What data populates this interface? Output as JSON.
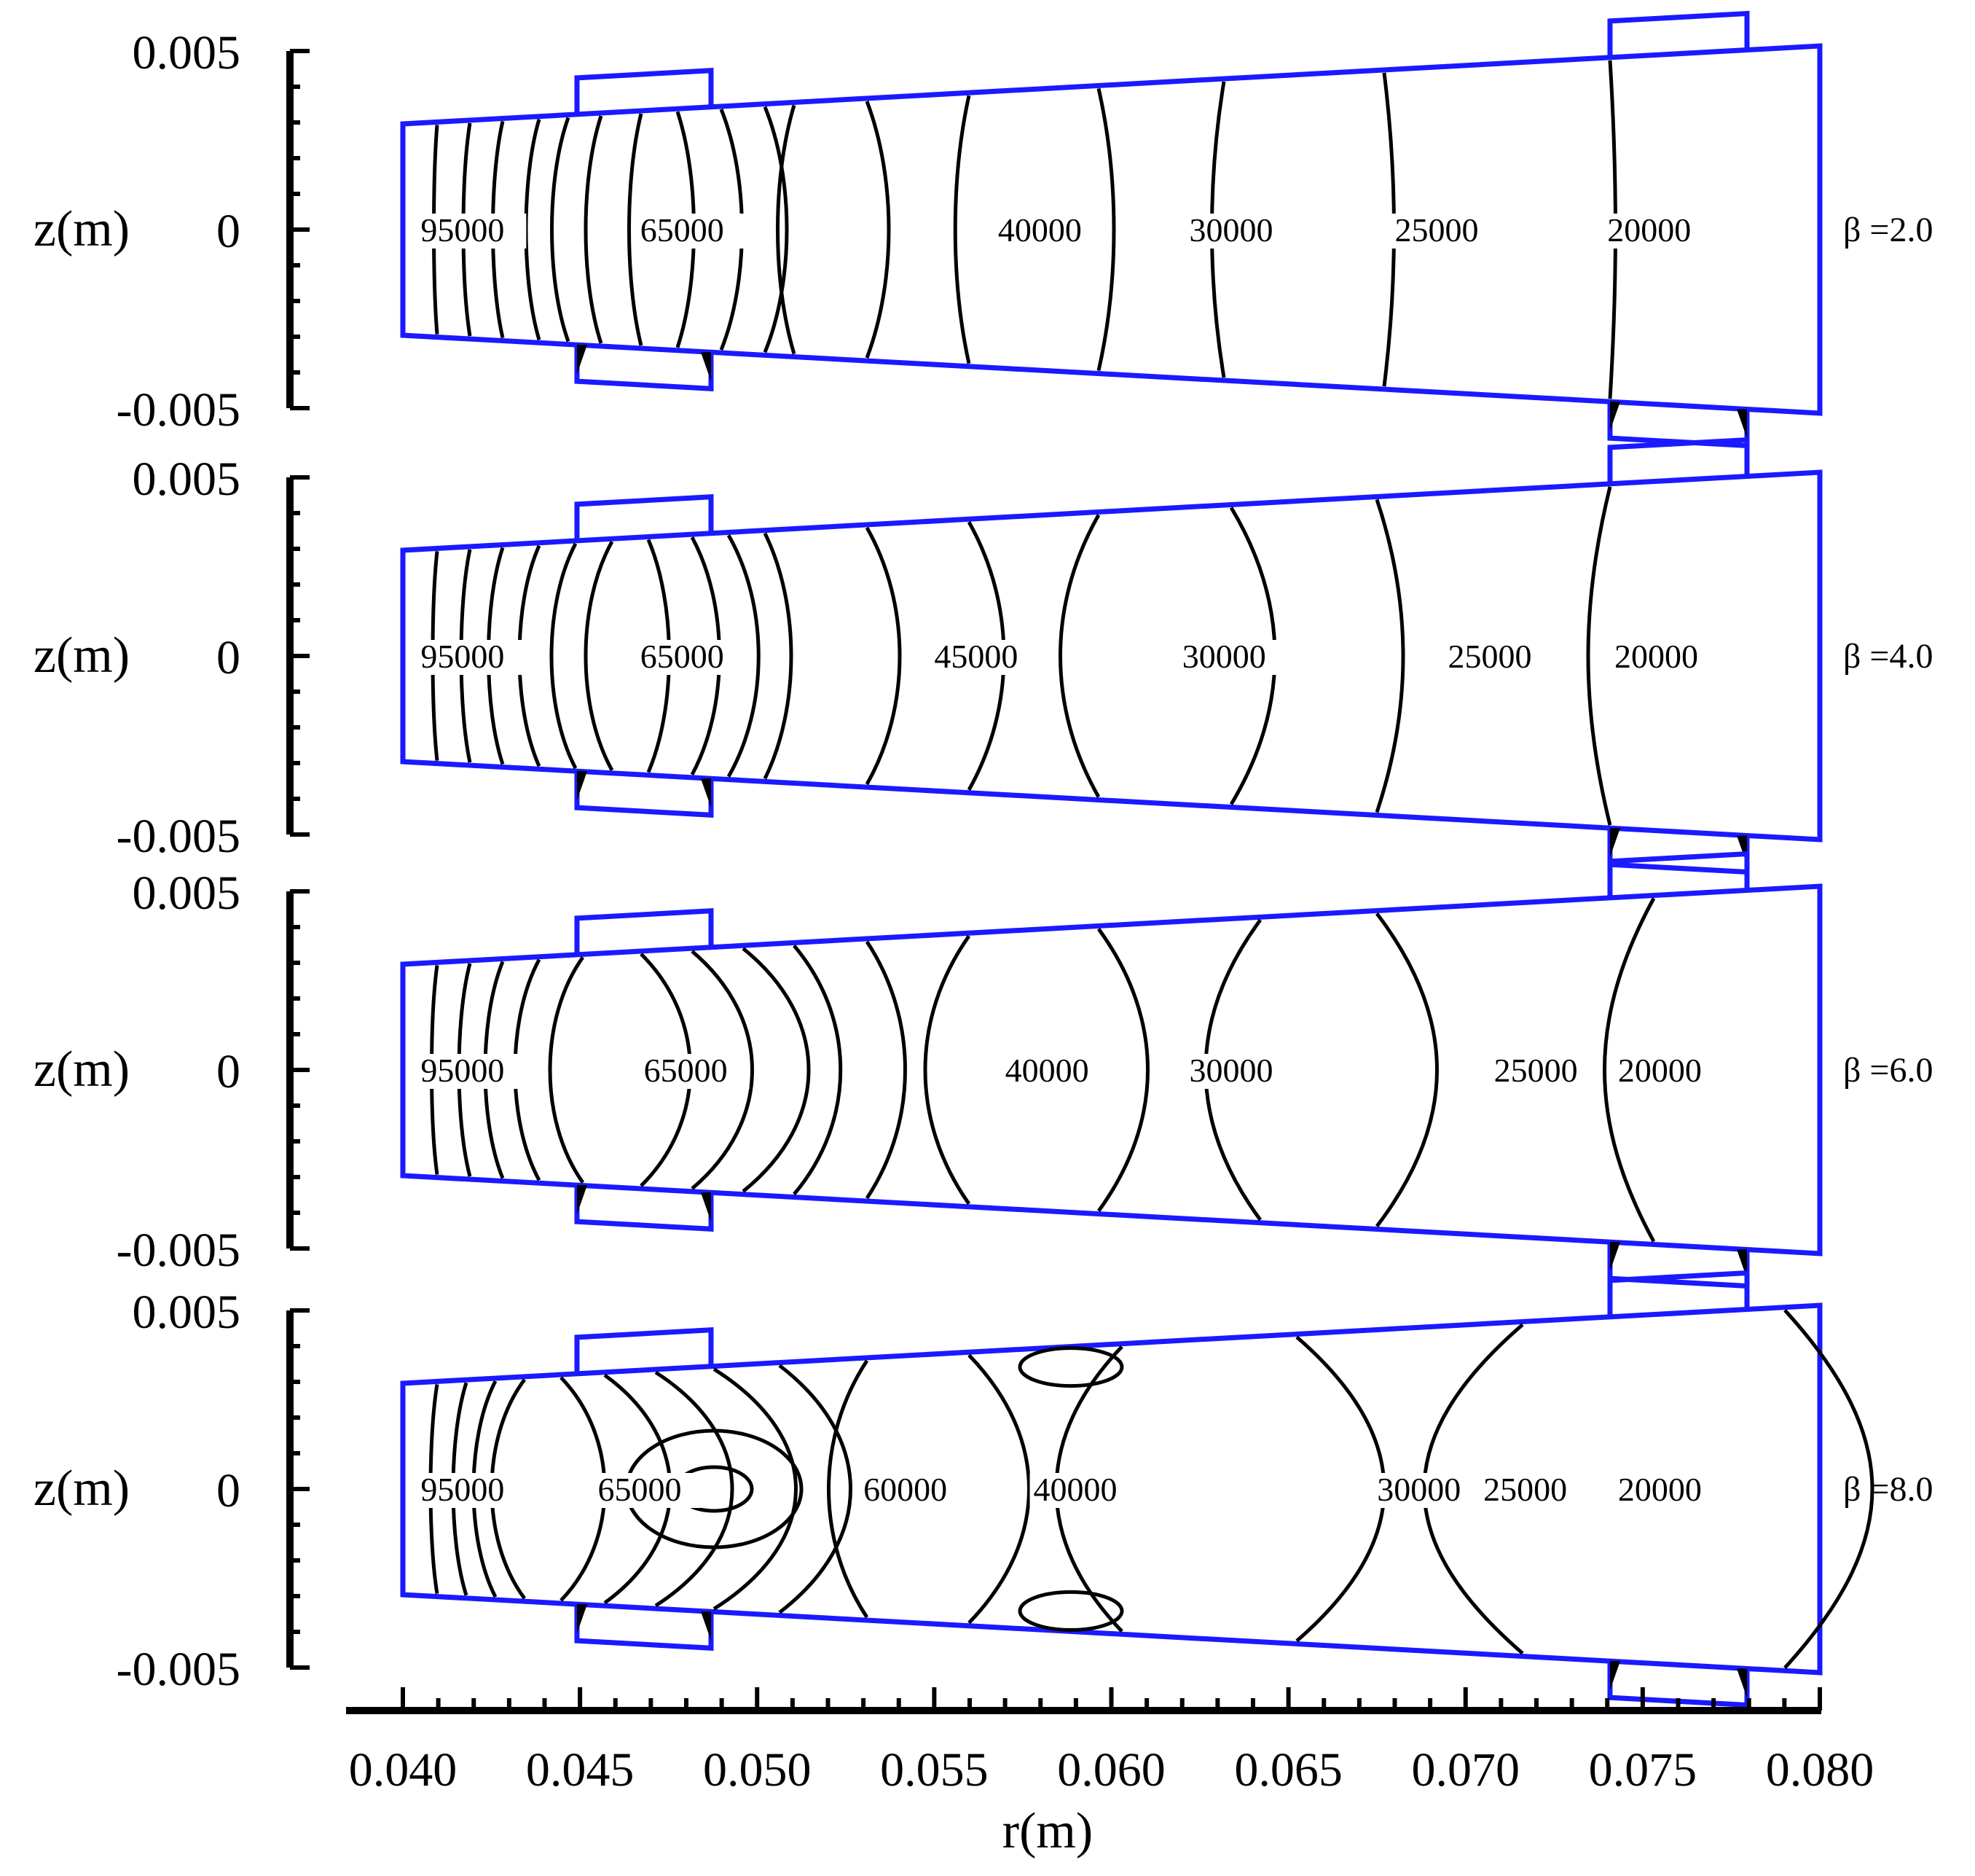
{
  "chart_data": {
    "type": "contour",
    "x_axis": {
      "label": "r(m)",
      "range": [
        0.04,
        0.08
      ],
      "tick_labels": [
        "0.040",
        "0.045",
        "0.050",
        "0.055",
        "0.060",
        "0.065",
        "0.070",
        "0.075",
        "0.080"
      ]
    },
    "y_axis": {
      "label": "z(m)",
      "range": [
        -0.005,
        0.005
      ],
      "tick_labels": [
        "0.005",
        "0",
        "-0.005"
      ]
    },
    "panels": [
      {
        "beta_label": "β =2.0",
        "contour_labels": [
          {
            "text": "95000",
            "r": 0.0405,
            "z": 0.0
          },
          {
            "text": "65000",
            "r": 0.0467,
            "z": 0.0
          },
          {
            "text": "40000",
            "r": 0.0568,
            "z": 0.0
          },
          {
            "text": "30000",
            "r": 0.0622,
            "z": 0.0
          },
          {
            "text": "25000",
            "r": 0.068,
            "z": 0.0
          },
          {
            "text": "20000",
            "r": 0.074,
            "z": 0.0
          }
        ]
      },
      {
        "beta_label": "β =4.0",
        "contour_labels": [
          {
            "text": "95000",
            "r": 0.0405,
            "z": 0.0
          },
          {
            "text": "65000",
            "r": 0.0467,
            "z": 0.0
          },
          {
            "text": "45000",
            "r": 0.055,
            "z": 0.0
          },
          {
            "text": "30000",
            "r": 0.062,
            "z": 0.0
          },
          {
            "text": "25000",
            "r": 0.0695,
            "z": 0.0
          },
          {
            "text": "20000",
            "r": 0.0742,
            "z": 0.0
          }
        ]
      },
      {
        "beta_label": "β =6.0",
        "contour_labels": [
          {
            "text": "95000",
            "r": 0.0405,
            "z": 0.0
          },
          {
            "text": "65000",
            "r": 0.0468,
            "z": 0.0
          },
          {
            "text": "40000",
            "r": 0.057,
            "z": 0.0
          },
          {
            "text": "30000",
            "r": 0.0622,
            "z": 0.0
          },
          {
            "text": "25000",
            "r": 0.0708,
            "z": 0.0
          },
          {
            "text": "20000",
            "r": 0.0743,
            "z": 0.0
          }
        ]
      },
      {
        "beta_label": "β =8.0",
        "contour_labels": [
          {
            "text": "95000",
            "r": 0.0405,
            "z": 0.0
          },
          {
            "text": "65000",
            "r": 0.0455,
            "z": 0.0
          },
          {
            "text": "60000",
            "r": 0.053,
            "z": 0.0
          },
          {
            "text": "40000",
            "r": 0.0578,
            "z": 0.0
          },
          {
            "text": "30000",
            "r": 0.0675,
            "z": 0.0
          },
          {
            "text": "25000",
            "r": 0.0705,
            "z": 0.0
          },
          {
            "text": "20000",
            "r": 0.0743,
            "z": 0.0
          }
        ]
      }
    ]
  }
}
